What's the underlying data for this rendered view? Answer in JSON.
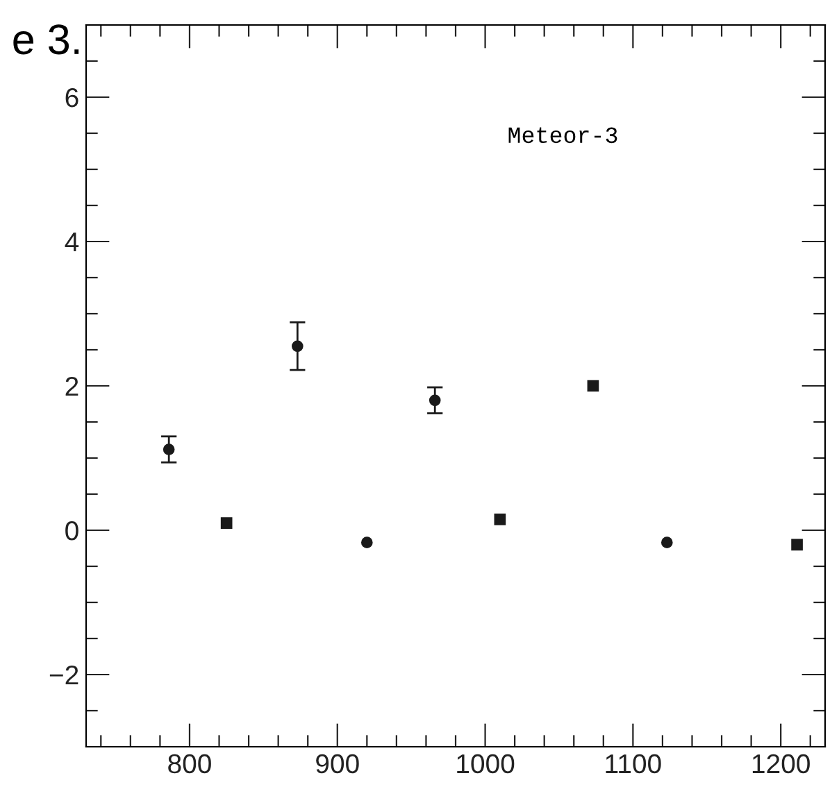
{
  "chart_data": {
    "type": "scatter",
    "annotations": [
      "Meteor-3",
      "e 3."
    ],
    "xlim": [
      730,
      1230
    ],
    "ylim": [
      -3,
      7
    ],
    "xticks": [
      {
        "value": 740,
        "label": null
      },
      {
        "value": 760,
        "label": null
      },
      {
        "value": 780,
        "label": null
      },
      800,
      {
        "value": 820,
        "label": null
      },
      {
        "value": 840,
        "label": null
      },
      {
        "value": 860,
        "label": null
      },
      {
        "value": 880,
        "label": null
      },
      900,
      {
        "value": 920,
        "label": null
      },
      {
        "value": 940,
        "label": null
      },
      {
        "value": 960,
        "label": null
      },
      {
        "value": 980,
        "label": null
      },
      1000,
      {
        "value": 1020,
        "label": null
      },
      {
        "value": 1040,
        "label": null
      },
      {
        "value": 1060,
        "label": null
      },
      {
        "value": 1080,
        "label": null
      },
      1100,
      {
        "value": 1120,
        "label": null
      },
      {
        "value": 1140,
        "label": null
      },
      {
        "value": 1160,
        "label": null
      },
      {
        "value": 1180,
        "label": null
      },
      1200,
      {
        "value": 1220,
        "label": null
      }
    ],
    "yticks": [
      {
        "value": -2.5,
        "label": null
      },
      {
        "value": -2,
        "label": "−2"
      },
      {
        "value": -1.5,
        "label": null
      },
      {
        "value": -1,
        "label": null
      },
      {
        "value": -0.5,
        "label": null
      },
      0,
      {
        "value": 0.5,
        "label": null
      },
      {
        "value": 1,
        "label": null
      },
      {
        "value": 1.5,
        "label": null
      },
      2,
      {
        "value": 2.5,
        "label": null
      },
      {
        "value": 3,
        "label": null
      },
      {
        "value": 3.5,
        "label": null
      },
      4,
      {
        "value": 4.5,
        "label": null
      },
      {
        "value": 5,
        "label": null
      },
      {
        "value": 5.5,
        "label": null
      },
      6,
      {
        "value": 6.5,
        "label": null
      }
    ],
    "series": [
      {
        "color": "#1a1a1a",
        "marker": "circle",
        "x": [
          786,
          873,
          920,
          966,
          1123
        ],
        "values": [
          1.12,
          2.55,
          -0.17,
          1.8,
          -0.17
        ],
        "errors": [
          0.18,
          0.33,
          null,
          0.18,
          null
        ]
      },
      {
        "color": "#1a1a1a",
        "marker": "square",
        "x": [
          825,
          1010,
          1073,
          1211
        ],
        "values": [
          0.1,
          0.15,
          2.0,
          -0.2
        ]
      }
    ]
  }
}
